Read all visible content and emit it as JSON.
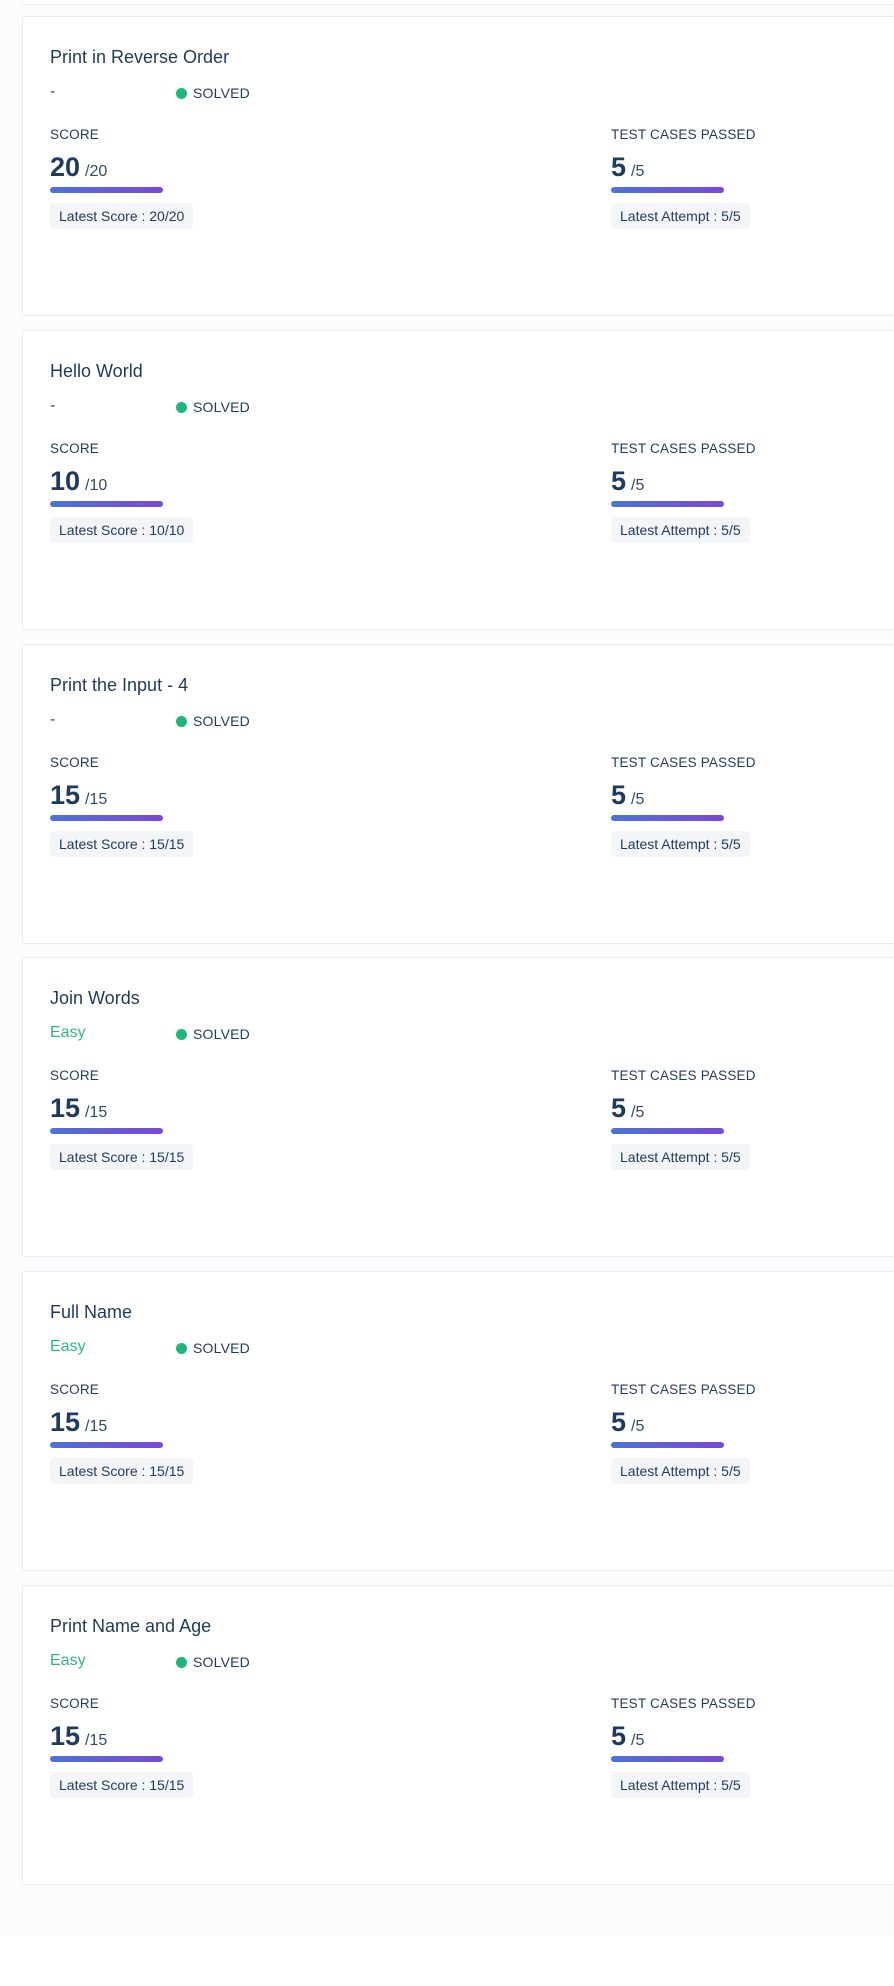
{
  "labels": {
    "score": "SCORE",
    "tests": "TEST CASES PASSED",
    "latest_score_prefix": "Latest Score : ",
    "latest_attempt_prefix": "Latest Attempt : "
  },
  "problems": [
    {
      "title": "Print in Reverse Order",
      "difficulty": "-",
      "status": "SOLVED",
      "score": "20",
      "max_score": "/20",
      "passed": "5",
      "total": "/5",
      "latest_score": "Latest Score : 20/20",
      "latest_attempt": "Latest Attempt : 5/5"
    },
    {
      "title": "Hello World",
      "difficulty": "-",
      "status": "SOLVED",
      "score": "10",
      "max_score": "/10",
      "passed": "5",
      "total": "/5",
      "latest_score": "Latest Score : 10/10",
      "latest_attempt": "Latest Attempt : 5/5"
    },
    {
      "title": "Print the Input - 4",
      "difficulty": "-",
      "status": "SOLVED",
      "score": "15",
      "max_score": "/15",
      "passed": "5",
      "total": "/5",
      "latest_score": "Latest Score : 15/15",
      "latest_attempt": "Latest Attempt : 5/5"
    },
    {
      "title": "Join Words",
      "difficulty": "Easy",
      "status": "SOLVED",
      "score": "15",
      "max_score": "/15",
      "passed": "5",
      "total": "/5",
      "latest_score": "Latest Score : 15/15",
      "latest_attempt": "Latest Attempt : 5/5"
    },
    {
      "title": "Full Name",
      "difficulty": "Easy",
      "status": "SOLVED",
      "score": "15",
      "max_score": "/15",
      "passed": "5",
      "total": "/5",
      "latest_score": "Latest Score : 15/15",
      "latest_attempt": "Latest Attempt : 5/5"
    },
    {
      "title": "Print Name and Age",
      "difficulty": "Easy",
      "status": "SOLVED",
      "score": "15",
      "max_score": "/15",
      "passed": "5",
      "total": "/5",
      "latest_score": "Latest Score : 15/15",
      "latest_attempt": "Latest Attempt : 5/5"
    }
  ],
  "colors": {
    "solved_dot": "#1cb87a",
    "easy_text": "#2fb87f",
    "bar_start": "#4a74d6",
    "bar_end": "#7b48d4"
  }
}
